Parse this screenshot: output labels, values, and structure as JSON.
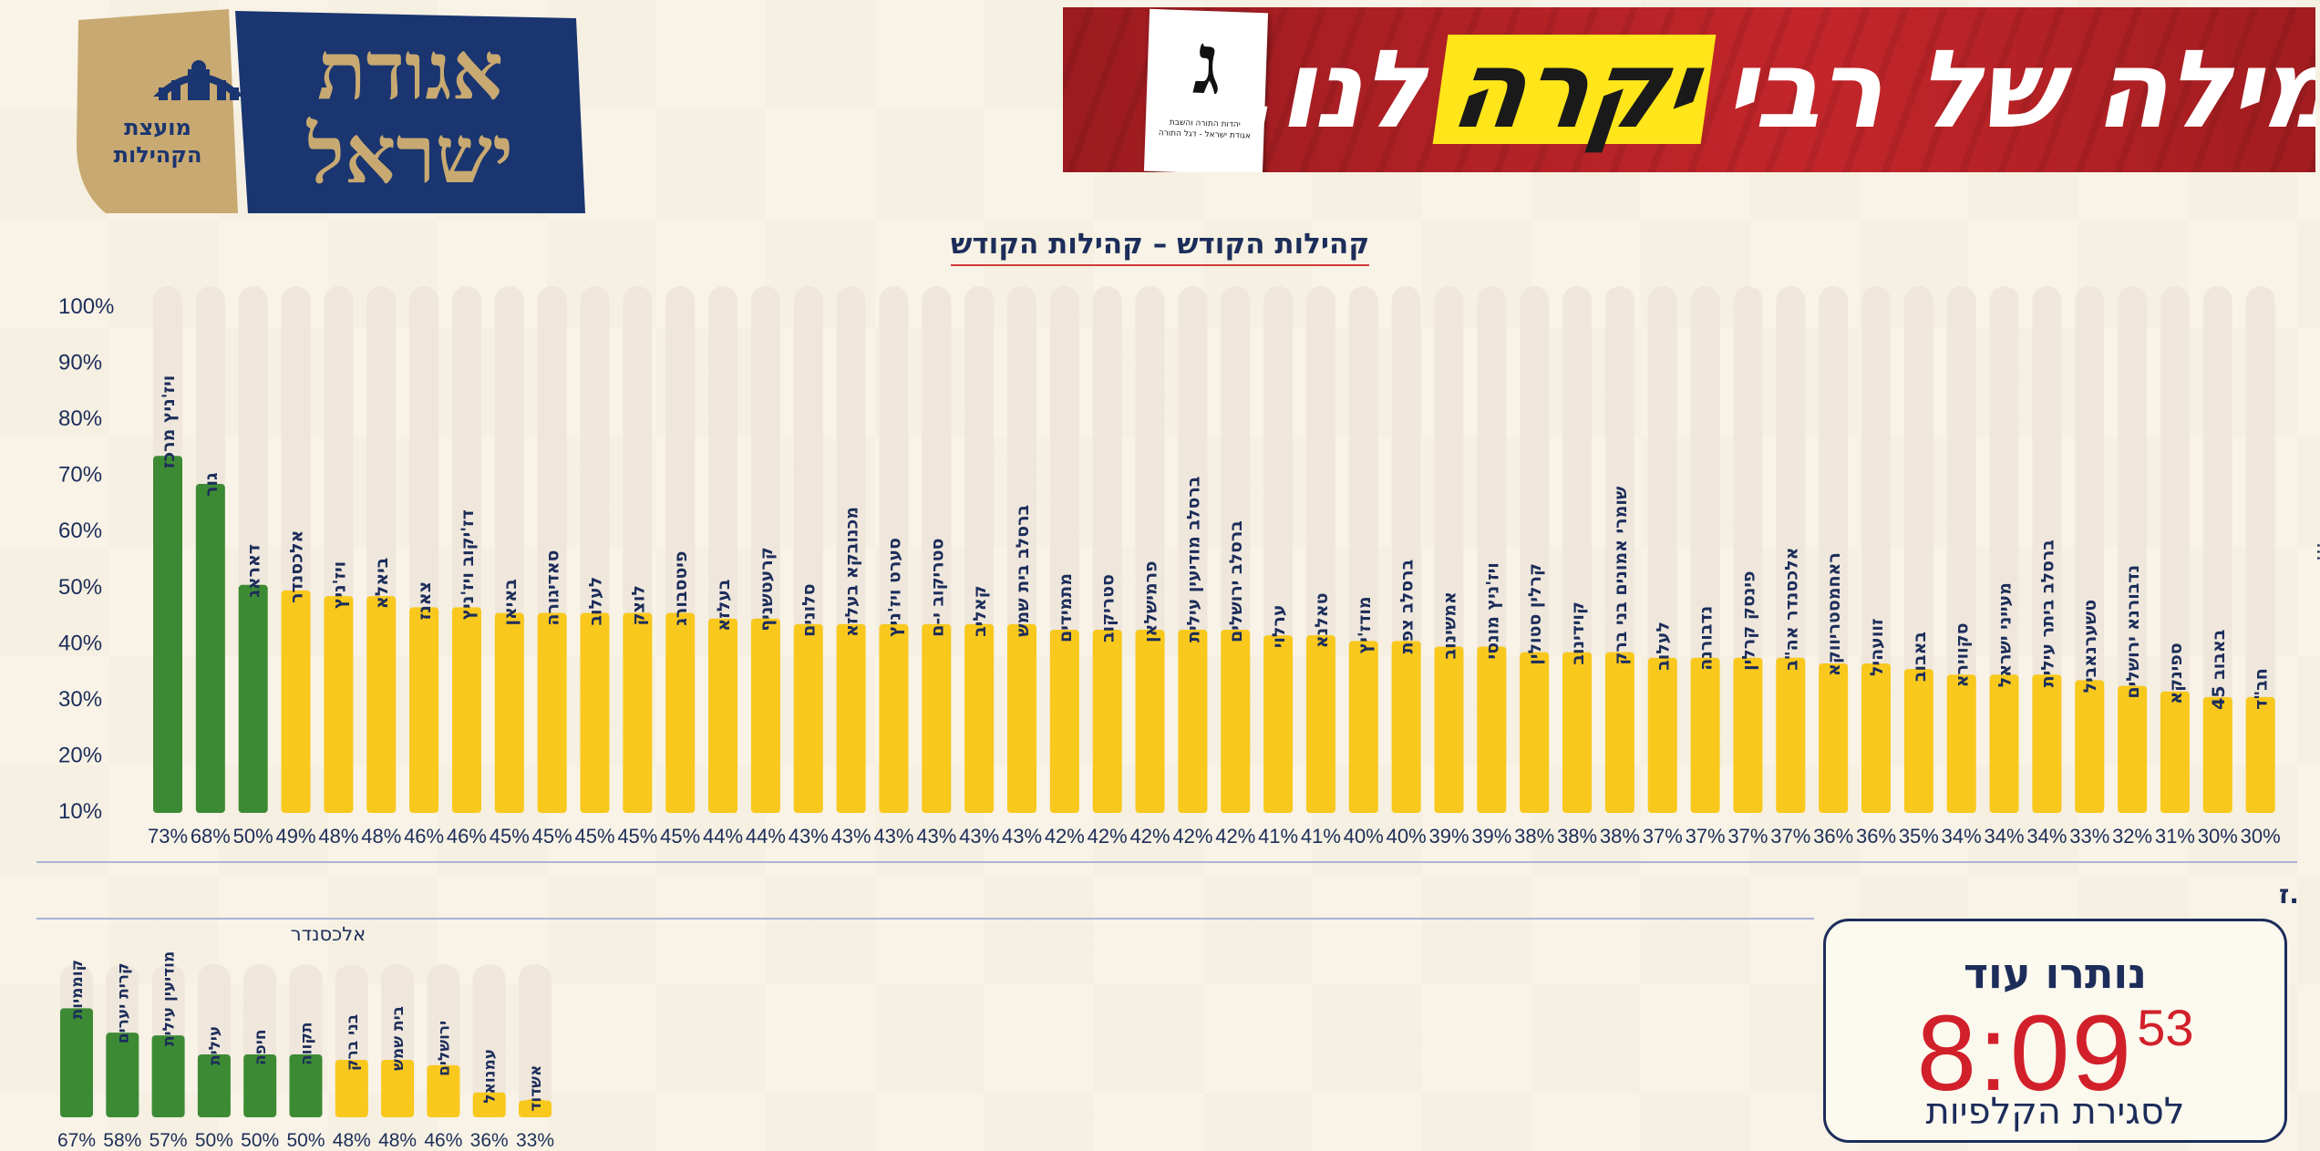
{
  "logo": {
    "name_line1": "אגודת",
    "name_line2": "ישראל",
    "emblem_line1": "מועצת",
    "emblem_line2": "הקהילות",
    "navy": "#1a3570",
    "gold": "#c8a971"
  },
  "banner": {
    "slogan_part1": "מילה של רבי",
    "slogan_highlight": "יקרה",
    "slogan_part2": "לנו.",
    "ballot_letter": "ג",
    "ballot_caption_line1": "יהדות התורה והשבת",
    "ballot_caption_line2": "אגודת ישראל - דגל התורה"
  },
  "chart_data": [
    {
      "type": "bar",
      "title": "קהילות הקודש – קהילות הקודש",
      "ylim": [
        10,
        100
      ],
      "yticks": [
        "100%",
        "90%",
        "80%",
        "70%",
        "60%",
        "50%",
        "40%",
        "30%",
        "20%",
        "10%"
      ],
      "categories": [
        "ויז'ניץ מרכז",
        "גור",
        "דאראג",
        "אלכסנדר",
        "ויז'ניץ",
        "ביאלא",
        "צאנז",
        "דז'יקוב ויז'ניץ",
        "באיאן",
        "סאדיגורה",
        "לעלוב",
        "לוצק",
        "פיטסבורג",
        "בעלזא",
        "קרעטשניף",
        "סלונים",
        "מכנובקא בעלזא",
        "סערט ויז'ניץ",
        "סטריקוב י-ם",
        "קאליב",
        "ברסלב בית שמש",
        "מתמידים",
        "סטריקוב",
        "פרמישלאן",
        "ברסלב מודיעין עילית",
        "ברסלב ירושלים",
        "ערלוי",
        "טאלנא",
        "מודז'יץ",
        "ברסלב צפת",
        "אמשינוב",
        "ויז'ניץ מונסי",
        "קרלין סטולין",
        "קוידינוב",
        "שומרי אמונים בני ברק",
        "לעלוב",
        "נדבורנה",
        "פינסק קרלין",
        "אלכסנדר אה\"ב",
        "ראחמסטריווקא",
        "זוועהיל",
        "באבוב",
        "סקווירא",
        "מעייני ישראל",
        "ברסלב ביתר עילית",
        "טשערנאביל",
        "נדבורנא ירושלים",
        "ספינקא",
        "באבוב 45",
        "חב\"ד"
      ],
      "values": [
        73,
        68,
        50,
        49,
        48,
        48,
        46,
        46,
        45,
        45,
        45,
        45,
        45,
        44,
        44,
        43,
        43,
        43,
        43,
        43,
        43,
        42,
        42,
        42,
        42,
        42,
        41,
        41,
        40,
        40,
        39,
        39,
        38,
        38,
        38,
        37,
        37,
        37,
        37,
        36,
        36,
        35,
        34,
        34,
        34,
        33,
        32,
        31,
        30,
        30
      ],
      "value_labels": [
        "73%",
        "68%",
        "50%",
        "49%",
        "48%",
        "48%",
        "46%",
        "46%",
        "45%",
        "45%",
        "45%",
        "45%",
        "45%",
        "44%",
        "44%",
        "43%",
        "43%",
        "43%",
        "43%",
        "43%",
        "43%",
        "42%",
        "42%",
        "42%",
        "42%",
        "42%",
        "41%",
        "41%",
        "40%",
        "40%",
        "39%",
        "39%",
        "38%",
        "38%",
        "38%",
        "37%",
        "37%",
        "37%",
        "37%",
        "36%",
        "36%",
        "35%",
        "34%",
        "34%",
        "34%",
        "33%",
        "32%",
        "31%",
        "30%",
        "30%"
      ],
      "highlight_count": 3,
      "colors": {
        "top": "#3d8a35",
        "rest": "#f8c81d",
        "track": "#efe7dc",
        "text": "#1c2d5a"
      },
      "grid": false
    },
    {
      "type": "bar",
      "annotation": "אלכסנדר",
      "categories": [
        "קוממיות",
        "קרית יערים",
        "מודיעין עילית",
        "עילית",
        "חיפה",
        "תקווה",
        "בני ברק",
        "בית שמש",
        "ירושלים",
        "עמנואל",
        "אשדוד"
      ],
      "values": [
        67,
        58,
        57,
        50,
        50,
        50,
        48,
        48,
        46,
        36,
        33
      ],
      "value_labels": [
        "67%",
        "58%",
        "57%",
        "50%",
        "50%",
        "50%",
        "48%",
        "48%",
        "46%",
        "36%",
        "33%"
      ],
      "highlight_count": 6,
      "colors": {
        "top": "#3d8a35",
        "rest": "#f8c81d",
        "track": "#efe7dc",
        "text": "#1c2d5a"
      },
      "grid": false
    }
  ],
  "stray_text": "ז.",
  "side_marker": "...",
  "countdown": {
    "heading": "נותרו עוד",
    "time": "8:09",
    "seconds": "53",
    "caption": "לסגירת הקלפיות"
  }
}
